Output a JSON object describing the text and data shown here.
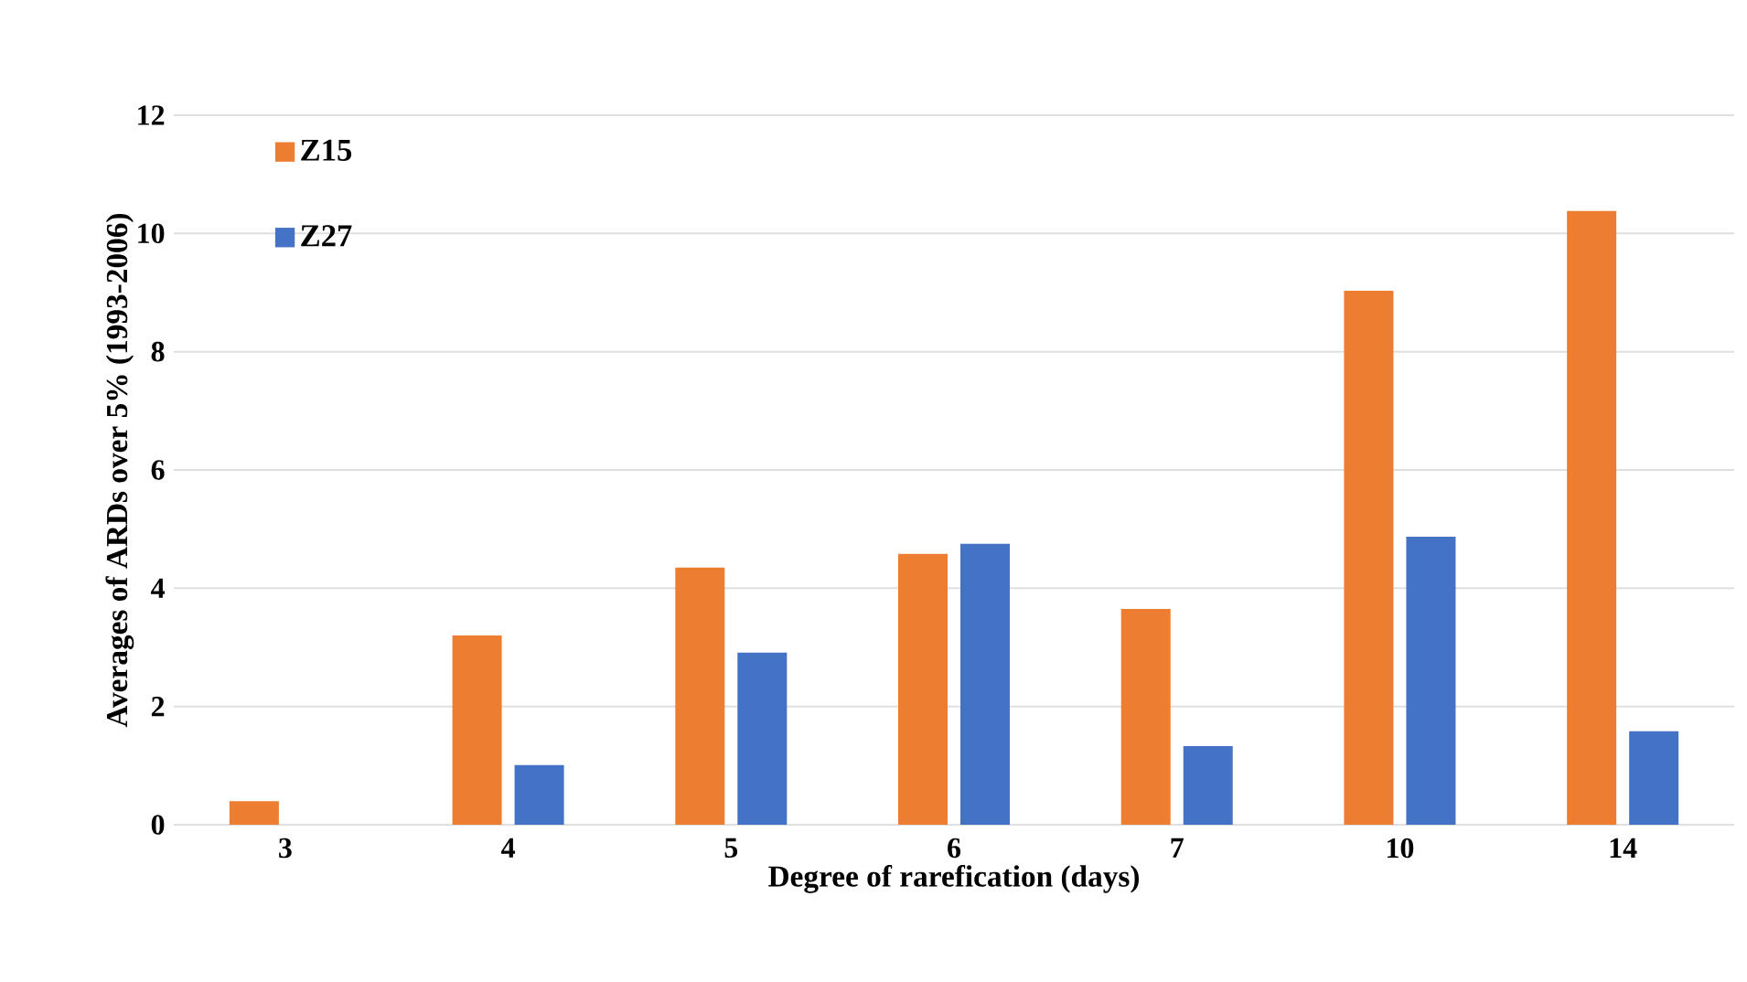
{
  "chart_data": {
    "type": "bar",
    "xlabel": "Degree of rarefication (days)",
    "ylabel": "Averages of ARDs over 5% (1993-2006)",
    "categories": [
      "3",
      "4",
      "5",
      "6",
      "7",
      "10",
      "14"
    ],
    "series": [
      {
        "name": "Z15",
        "color": "#ed7d31",
        "values": [
          0.4,
          3.2,
          4.35,
          4.58,
          3.65,
          9.03,
          10.38
        ]
      },
      {
        "name": "Z27",
        "color": "#4472c4",
        "values": [
          null,
          1.01,
          2.91,
          4.75,
          1.33,
          4.87,
          1.58
        ]
      }
    ],
    "ylim": [
      0,
      12
    ],
    "yticks": [
      0,
      2,
      4,
      6,
      8,
      10,
      12
    ],
    "grid": "y",
    "legend": "top left"
  }
}
